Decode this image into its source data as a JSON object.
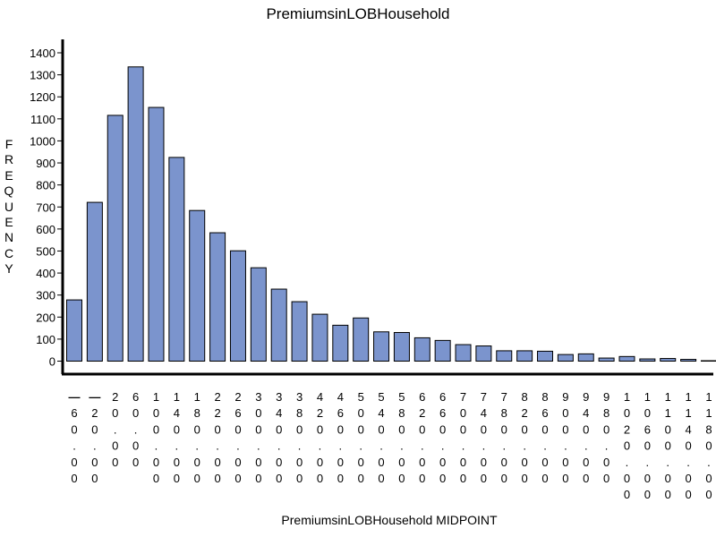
{
  "chart_data": {
    "type": "bar",
    "title": "PremiumsinLOBHousehold",
    "xlabel": "PremiumsinLOBHousehold MIDPOINT",
    "ylabel": "FREQUENCY",
    "ylim": [
      0,
      1400
    ],
    "yticks": [
      0,
      100,
      200,
      300,
      400,
      500,
      600,
      700,
      800,
      900,
      1000,
      1100,
      1200,
      1300,
      1400
    ],
    "grid": false,
    "bar_color": "#7b94cd",
    "categories": [
      "-60.00",
      "-20.00",
      "20.00",
      "60.00",
      "100.00",
      "140.00",
      "180.00",
      "220.00",
      "260.00",
      "300.00",
      "340.00",
      "380.00",
      "420.00",
      "460.00",
      "500.00",
      "540.00",
      "580.00",
      "620.00",
      "660.00",
      "700.00",
      "740.00",
      "780.00",
      "820.00",
      "860.00",
      "900.00",
      "940.00",
      "980.00",
      "1020.00",
      "1060.00",
      "1100.00",
      "1140.00",
      "1180.00"
    ],
    "values": [
      278,
      721,
      1116,
      1336,
      1152,
      925,
      684,
      583,
      501,
      424,
      327,
      270,
      213,
      163,
      196,
      133,
      130,
      106,
      94,
      75,
      69,
      47,
      47,
      45,
      30,
      33,
      14,
      21,
      10,
      12,
      8,
      2
    ]
  }
}
